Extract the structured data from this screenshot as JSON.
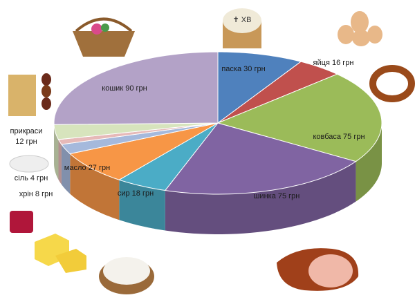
{
  "chart_data": {
    "type": "pie3d",
    "values": [
      30,
      16,
      75,
      75,
      18,
      27,
      8,
      4,
      12,
      90
    ],
    "value_labels": [
      "паска 30 грн",
      "яйця 16 грн",
      "ковбаса 75 грн",
      "шинка 75 грн",
      "сир 18 грн",
      "масло 27 грн",
      "хрін 8 грн",
      "сіль 4 грн",
      "прикраси 12 грн",
      "кошик 90 грн"
    ],
    "colors": [
      "#4f81bd",
      "#c0504d",
      "#9bbb59",
      "#8064a2",
      "#4bacc6",
      "#f79646",
      "#a5b9dc",
      "#e6b9b8",
      "#d7e4bd",
      "#b3a2c7"
    ]
  }
}
